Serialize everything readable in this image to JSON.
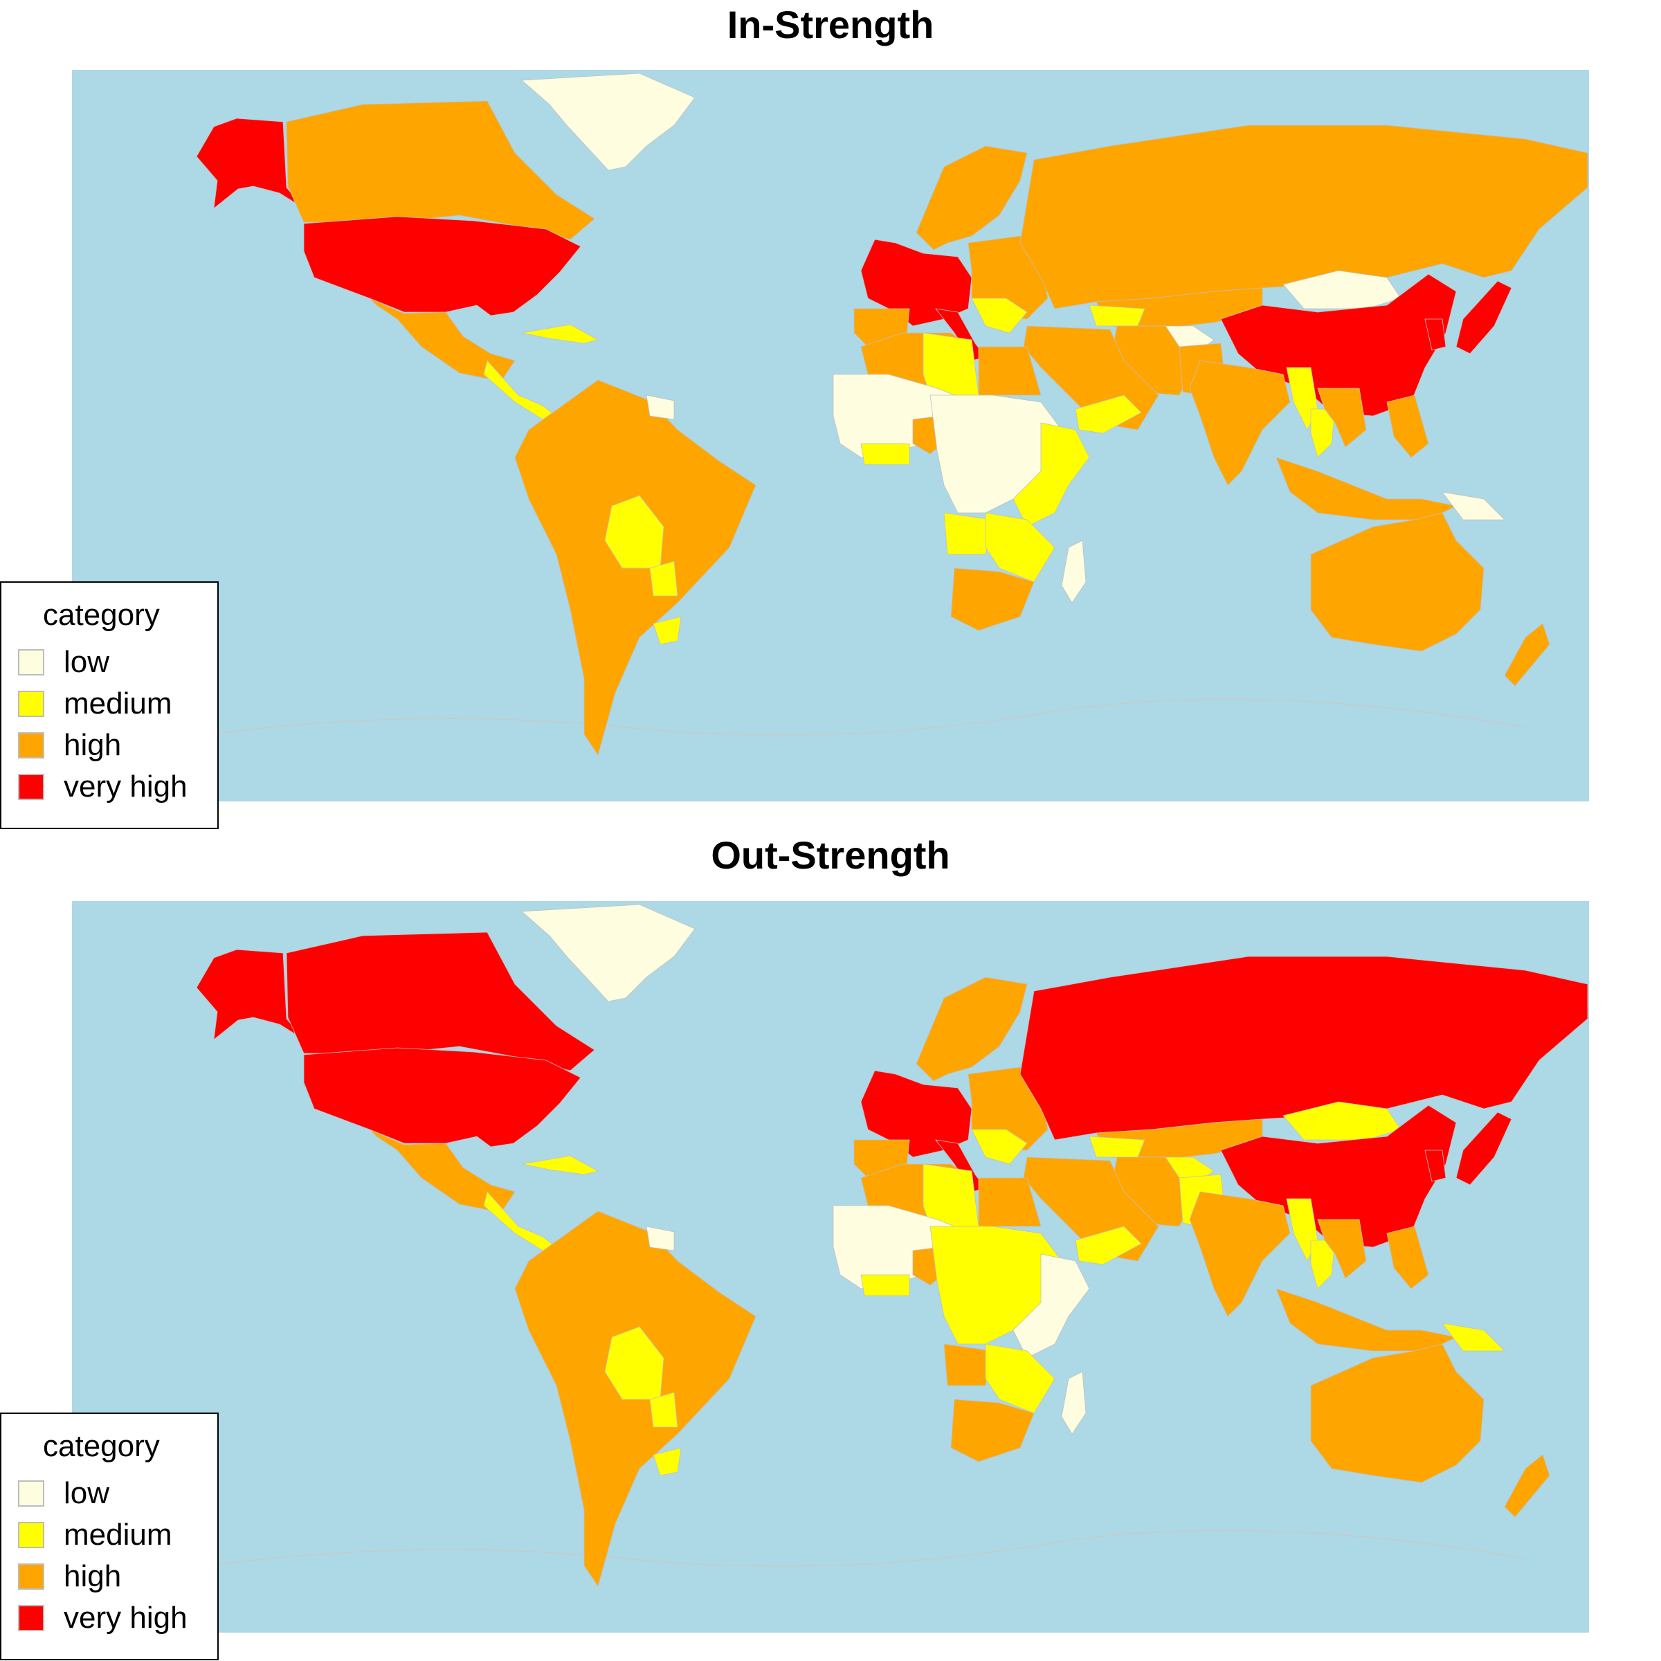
{
  "panels": [
    {
      "title": "In-Strength",
      "legend": {
        "title": "category",
        "items": [
          {
            "label": "low",
            "color": "#fffde0"
          },
          {
            "label": "medium",
            "color": "#ffff00"
          },
          {
            "label": "high",
            "color": "#ffa500"
          },
          {
            "label": "very high",
            "color": "#ff0000"
          }
        ]
      },
      "regions": {
        "greenland": "low",
        "alaska": "very high",
        "canada": "high",
        "usa": "very high",
        "mexico": "high",
        "central_america": "medium",
        "caribbean": "medium",
        "south_america": "high",
        "bolivia": "medium",
        "paraguay": "medium",
        "uruguay": "medium",
        "guianas": "low",
        "western_europe": "very high",
        "scandinavia": "high",
        "eastern_europe": "high",
        "balkans": "medium",
        "iberia": "high",
        "italy": "very high",
        "russia": "high",
        "mongolia": "low",
        "china": "very high",
        "japan": "very high",
        "korea": "very high",
        "kazakhstan": "high",
        "central_asia": "low",
        "caucasus": "medium",
        "middle_east": "high",
        "yemen": "medium",
        "india": "high",
        "pakistan": "high",
        "iran": "high",
        "myanmar": "medium",
        "thailand": "medium",
        "indochina": "high",
        "indonesia": "high",
        "philippines": "high",
        "papua_new_guinea": "low",
        "australia": "high",
        "new_zealand": "high",
        "north_africa": "high",
        "libya": "medium",
        "egypt": "high",
        "west_africa": "low",
        "nigeria": "high",
        "ghana_coast": "medium",
        "central_africa": "low",
        "east_africa": "medium",
        "angola": "medium",
        "southern_africa": "medium",
        "south_africa": "high",
        "madagascar": "low"
      }
    },
    {
      "title": "Out-Strength",
      "legend": {
        "title": "category",
        "items": [
          {
            "label": "low",
            "color": "#fffde0"
          },
          {
            "label": "medium",
            "color": "#ffff00"
          },
          {
            "label": "high",
            "color": "#ffa500"
          },
          {
            "label": "very high",
            "color": "#ff0000"
          }
        ]
      },
      "regions": {
        "greenland": "low",
        "alaska": "very high",
        "canada": "very high",
        "usa": "very high",
        "mexico": "high",
        "central_america": "medium",
        "caribbean": "medium",
        "south_america": "high",
        "bolivia": "medium",
        "paraguay": "medium",
        "uruguay": "medium",
        "guianas": "low",
        "western_europe": "very high",
        "scandinavia": "high",
        "eastern_europe": "high",
        "balkans": "medium",
        "iberia": "high",
        "italy": "very high",
        "russia": "very high",
        "mongolia": "medium",
        "china": "very high",
        "japan": "very high",
        "korea": "very high",
        "kazakhstan": "high",
        "central_asia": "medium",
        "caucasus": "medium",
        "middle_east": "high",
        "yemen": "medium",
        "india": "high",
        "pakistan": "medium",
        "iran": "high",
        "myanmar": "medium",
        "thailand": "medium",
        "indochina": "high",
        "indonesia": "high",
        "philippines": "high",
        "papua_new_guinea": "medium",
        "australia": "high",
        "new_zealand": "high",
        "north_africa": "high",
        "libya": "medium",
        "egypt": "high",
        "west_africa": "low",
        "nigeria": "high",
        "ghana_coast": "medium",
        "central_africa": "medium",
        "east_africa": "low",
        "angola": "high",
        "southern_africa": "medium",
        "south_africa": "high",
        "madagascar": "low"
      }
    }
  ]
}
